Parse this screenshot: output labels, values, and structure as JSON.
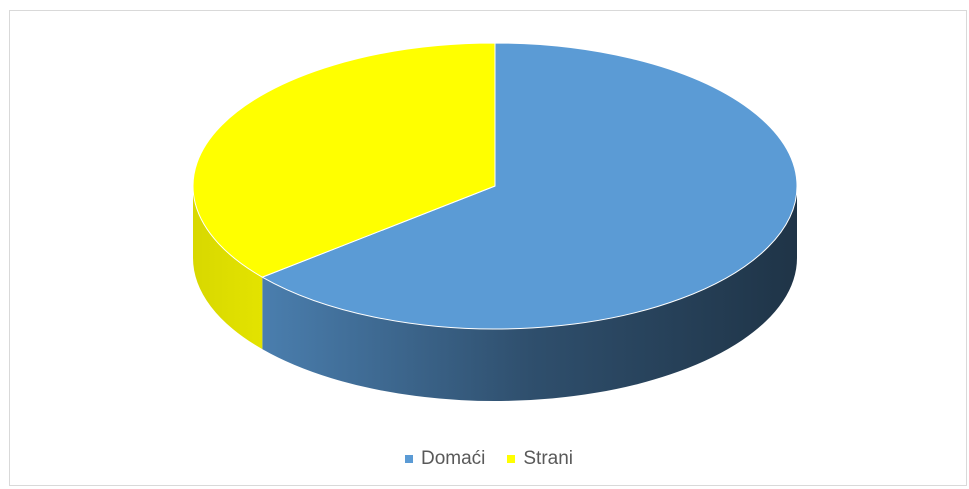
{
  "chart_data": {
    "type": "pie",
    "style": "3d",
    "series": [
      {
        "name": "Domaći",
        "value": 64,
        "color": "#5b9bd5"
      },
      {
        "name": "Strani",
        "value": 36,
        "color": "#ffff00"
      }
    ],
    "legend": "bottom"
  }
}
